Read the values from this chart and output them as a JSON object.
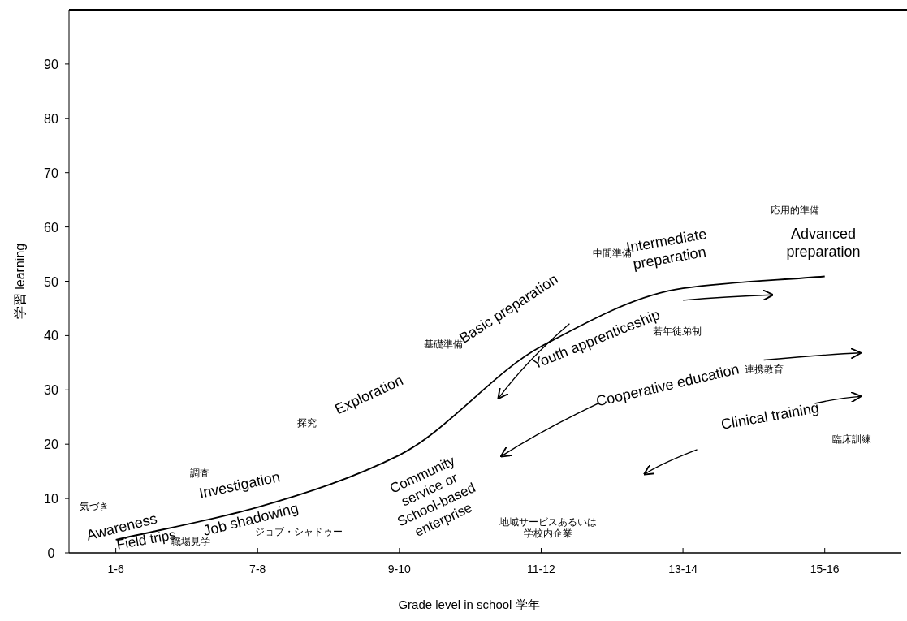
{
  "chart_data": {
    "type": "line",
    "xlabel": "Grade level in school 学年",
    "ylabel": "学習 learning",
    "categories": [
      "1-6",
      "7-8",
      "9-10",
      "11-12",
      "13-14",
      "15-16"
    ],
    "ylim": [
      0,
      100
    ],
    "yticks": [
      0,
      10,
      20,
      30,
      40,
      50,
      60,
      70,
      80,
      90
    ],
    "series": [
      {
        "color": "#000000",
        "values": [
          2.4,
          8.4,
          18,
          38,
          48.7,
          50.9
        ]
      }
    ],
    "annotations": [
      "気づき",
      "Awareness",
      "Field trips",
      "職場見学",
      "調査",
      "Investigation",
      "Job shadowing",
      "ジョブ・シャドゥー",
      "探究",
      "Exploration",
      "Community service or School-based enterprise",
      "地域サービスあるいは学校内企業",
      "基礎準備",
      "Basic preparation",
      "Youth apprenticeship",
      "若年徒弟制",
      "中間準備",
      "Intermediate preparation",
      "Cooperative education",
      "連携教育",
      "応用的準備",
      "Advanced preparation",
      "Clinical training",
      "臨床訓練"
    ]
  }
}
